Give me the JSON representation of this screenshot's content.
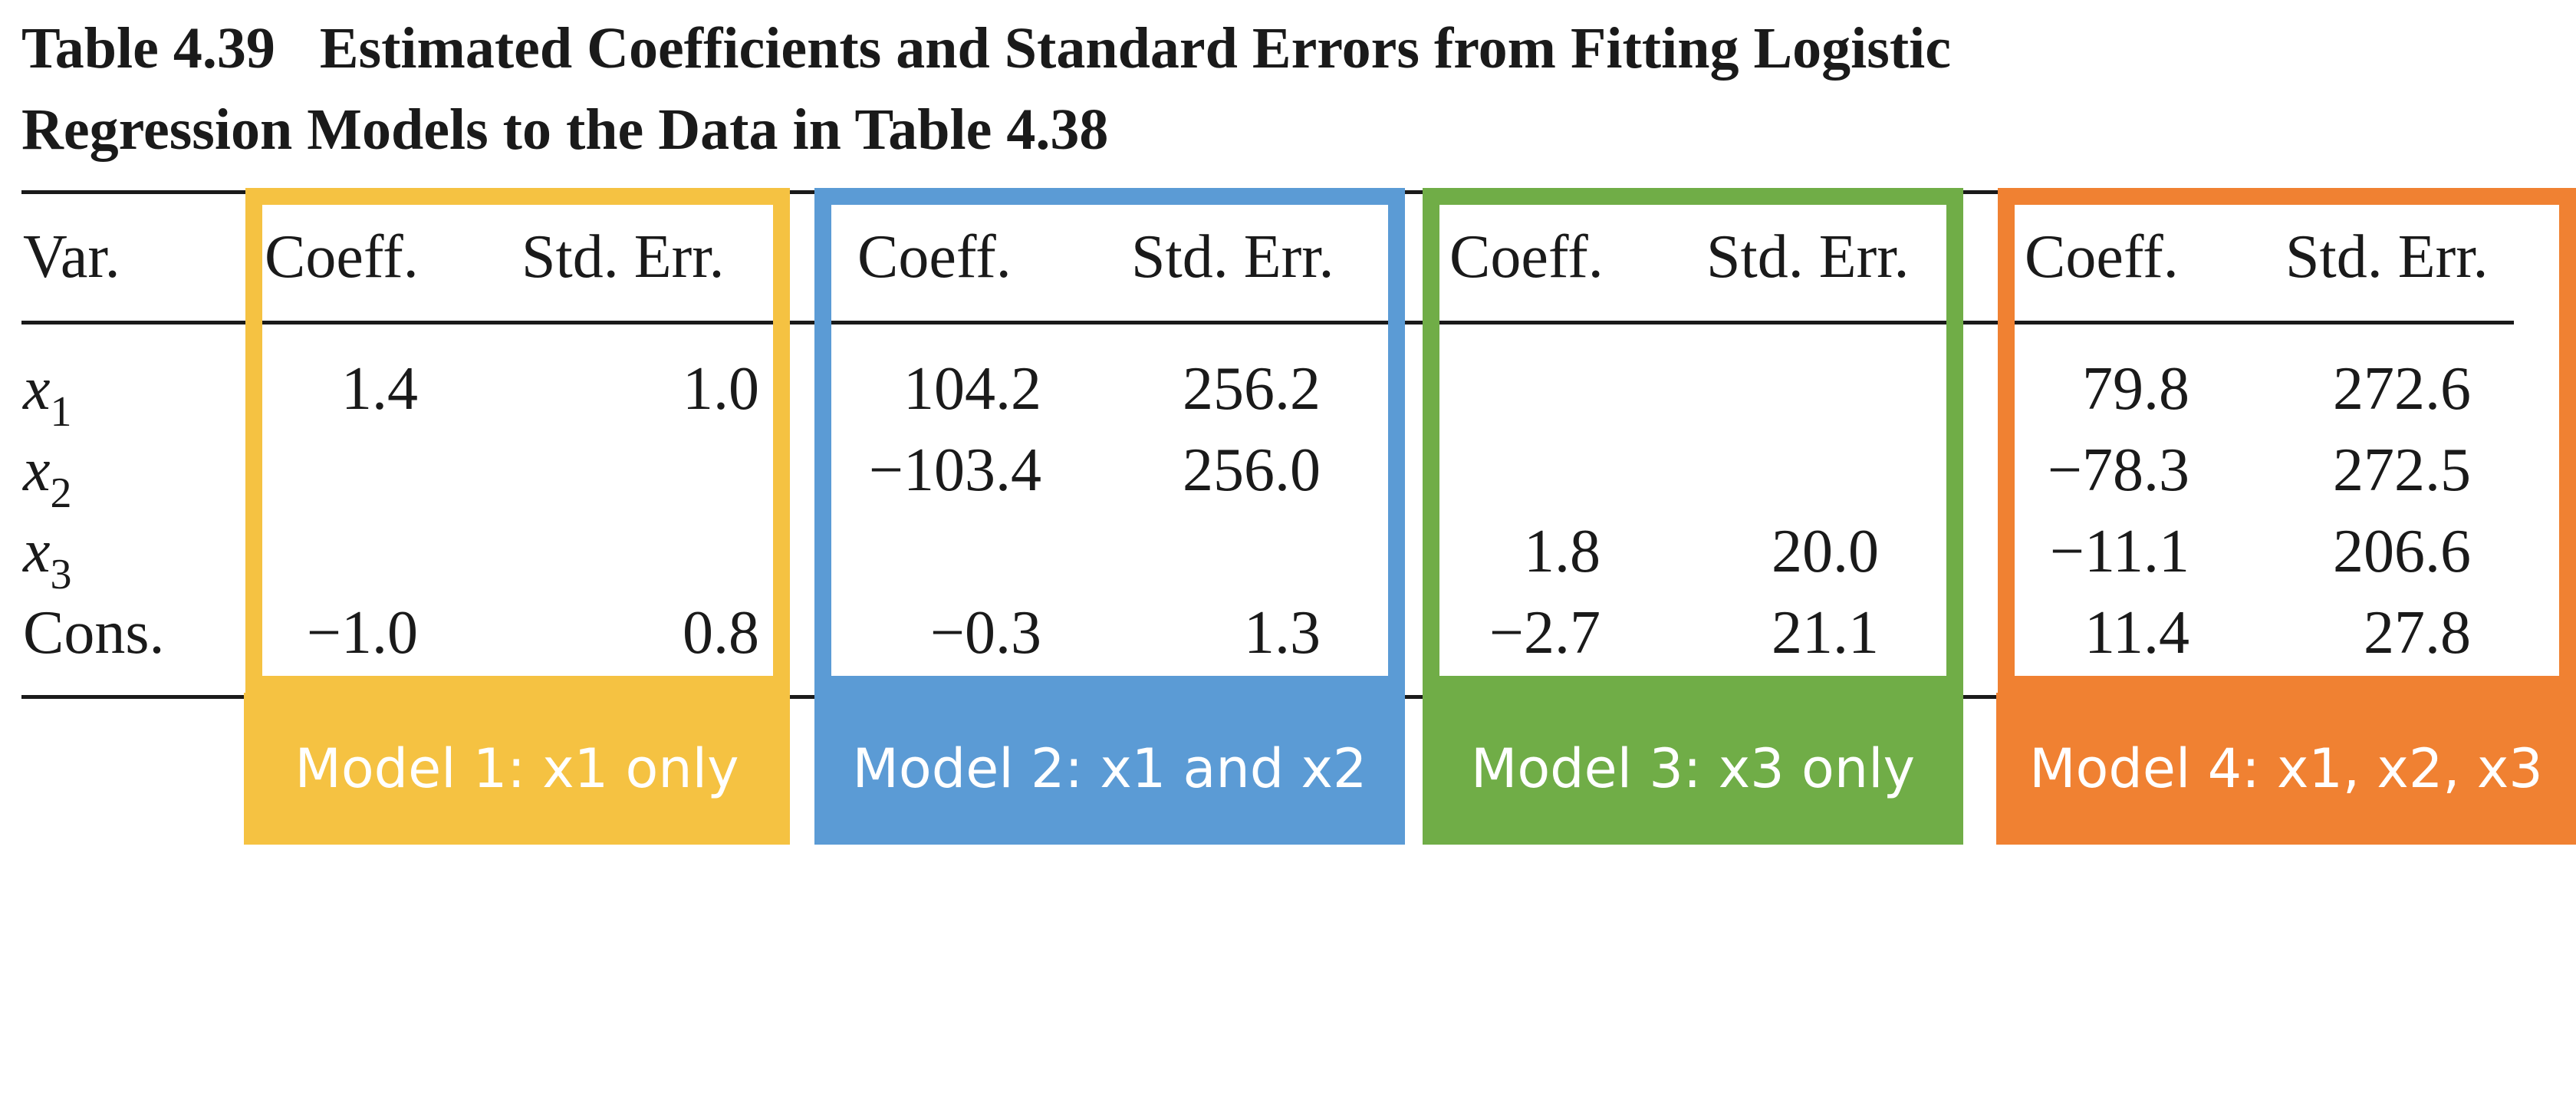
{
  "caption": {
    "table_number": "Table 4.39",
    "line1": "Estimated Coefficients and Standard Errors from Fitting Logistic",
    "line2": "Regression Models to the Data in Table 4.38"
  },
  "header": {
    "var": "Var.",
    "coeff": "Coeff.",
    "stderr": "Std. Err."
  },
  "variables": [
    {
      "base": "x",
      "sub": "1"
    },
    {
      "base": "x",
      "sub": "2"
    },
    {
      "base": "x",
      "sub": "3"
    },
    {
      "base": "Cons.",
      "sub": ""
    }
  ],
  "models": [
    {
      "label": "Model 1: x1 only",
      "color": "#F5C242",
      "coeff": [
        "1.4",
        "",
        "",
        "−1.0"
      ],
      "stderr": [
        "1.0",
        "",
        "",
        "0.8"
      ]
    },
    {
      "label": "Model 2: x1 and x2",
      "color": "#5B9BD5",
      "coeff": [
        "104.2",
        "−103.4",
        "",
        "−0.3"
      ],
      "stderr": [
        "256.2",
        "256.0",
        "",
        "1.3"
      ]
    },
    {
      "label": "Model 3: x3 only",
      "color": "#70AD47",
      "coeff": [
        "",
        "",
        "1.8",
        "−2.7"
      ],
      "stderr": [
        "",
        "",
        "20.0",
        "21.1"
      ]
    },
    {
      "label": "Model 4: x1, x2, x3",
      "color": "#F08132",
      "coeff": [
        "79.8",
        "−78.3",
        "−11.1",
        "11.4"
      ],
      "stderr": [
        "272.6",
        "272.5",
        "206.6",
        "27.8"
      ]
    }
  ]
}
